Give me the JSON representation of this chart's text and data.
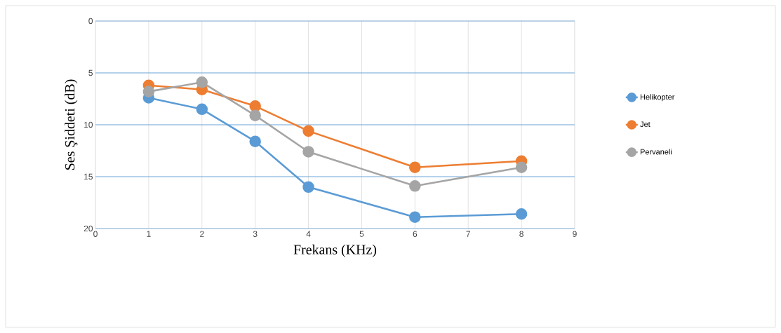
{
  "chart_data": {
    "type": "line",
    "xlabel": "Frekans (KHz)",
    "ylabel": "Ses Şiddeti (dB)",
    "x": [
      1,
      2,
      3,
      4,
      6,
      8
    ],
    "series": [
      {
        "name": "Helikopter",
        "color": "#5b9bd5",
        "values": [
          7.4,
          8.5,
          11.6,
          16.0,
          18.9,
          18.6
        ]
      },
      {
        "name": "Jet",
        "color": "#ed7d31",
        "values": [
          6.2,
          6.6,
          8.2,
          10.6,
          14.1,
          13.5
        ]
      },
      {
        "name": "Pervaneli",
        "color": "#a5a5a5",
        "values": [
          6.8,
          5.9,
          9.1,
          12.6,
          15.9,
          14.1
        ]
      }
    ],
    "xlim": [
      0,
      9
    ],
    "ylim": [
      20,
      0
    ],
    "xticks": [
      0,
      1,
      2,
      3,
      4,
      5,
      6,
      7,
      8,
      9
    ],
    "yticks": [
      0,
      5,
      10,
      15,
      20
    ],
    "grid": true,
    "legend": "right",
    "marker": "circle",
    "line_style": "solid"
  }
}
